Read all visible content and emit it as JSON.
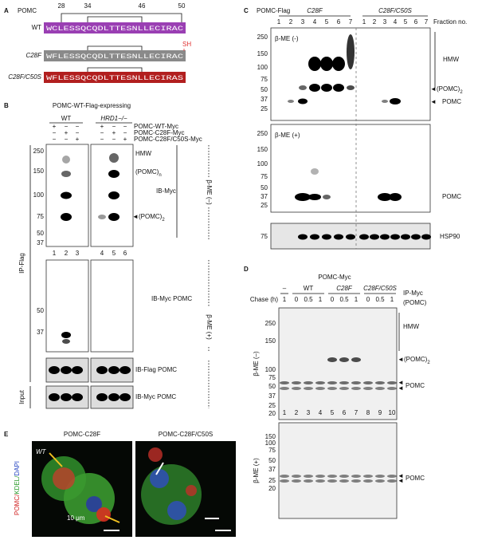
{
  "panel_a": {
    "letter": "A",
    "title": "POMC",
    "positions": [
      28,
      34,
      46,
      50
    ],
    "rows": [
      {
        "label": "WT",
        "sequence": "WCLESSQCQDLTTESNLLECIRAC"
      },
      {
        "label": "C28F",
        "sequence": "WFLESSQCQDLTTESNLLECIRAC"
      },
      {
        "label": "C28F/C50S",
        "sequence": "WFLESSQCQDLTTESNLLECIRAS"
      }
    ],
    "sh": "SH"
  },
  "panel_b": {
    "letter": "B",
    "title": "POMC-WT-Flag-expressing",
    "groups": [
      "WT",
      "HRD1−/−"
    ],
    "constructs": [
      "POMC-WT-Myc",
      "POMC-C28F-Myc",
      "POMC-C28F/C50S-Myc"
    ],
    "signs": [
      [
        "+",
        "−",
        "−",
        "+",
        "−",
        "−"
      ],
      [
        "−",
        "+",
        "−",
        "−",
        "+",
        "−"
      ],
      [
        "−",
        "−",
        "+",
        "−",
        "−",
        "+"
      ]
    ],
    "markers_top": [
      250,
      150,
      100,
      75,
      50,
      37
    ],
    "lanes": [
      1,
      2,
      3,
      4,
      5,
      6
    ],
    "markers_middle": [
      50,
      37
    ],
    "hmw": "HMW",
    "pomc": "(POMC)",
    "sub_n": "n",
    "sub_2": "2",
    "arrow": "◄",
    "ib_myc": "IB-Myc",
    "bme_minus": "β-ME (–)",
    "ib_myc_pomc": "IB-Myc POMC",
    "bme_plus": "β-ME (+)",
    "ib_flag_pomc": "IB-Flag POMC",
    "ib_myc_pomc_input": "IB-Myc POMC",
    "ip_flag": "IP-Flag",
    "input": "Input"
  },
  "panel_c": {
    "letter": "C",
    "title": "POMC-Flag",
    "groups": [
      "C28F",
      "C28F/C50S"
    ],
    "fraction_label": "Fraction no.",
    "fractions": [
      1,
      2,
      3,
      4,
      5,
      6,
      7,
      1,
      2,
      3,
      4,
      5,
      6,
      7
    ],
    "bme_minus": "β-ME (-)",
    "markers_top": [
      250,
      150,
      100,
      75,
      50,
      37,
      25
    ],
    "hmw": "HMW",
    "pomc_2": "(POMC)",
    "sub_2": "2",
    "pomc": "POMC",
    "bme_plus": "β-ME (+)",
    "markers_bottom": [
      250,
      150,
      100,
      75,
      50,
      37,
      25
    ],
    "pomc_bottom": "POMC",
    "marker_hsp": 75,
    "hsp90": "HSP90"
  },
  "panel_d": {
    "letter": "D",
    "title": "POMC-Myc",
    "groups": [
      "–",
      "WT",
      "C28F",
      "C28F/C50S"
    ],
    "chase_label": "Chase (h)",
    "chase": [
      1,
      0,
      0.5,
      1,
      0,
      0.5,
      1,
      0,
      0.5,
      1
    ],
    "ip_myc": "IP-Myc",
    "ip_pomc": "(POMC)",
    "markers_top": [
      250,
      150,
      100,
      75,
      50,
      37,
      25,
      20
    ],
    "hmw": "HMW",
    "pomc_2": "(POMC)",
    "sub_2": "2",
    "pomc": "POMC",
    "bme_minus": "β-ME (–)",
    "lanes": [
      1,
      2,
      3,
      4,
      5,
      6,
      7,
      8,
      9,
      10
    ],
    "markers_bottom": [
      150,
      100,
      75,
      50,
      37,
      25,
      20
    ],
    "bme_plus": "β-ME (+)",
    "pomc_bottom": "POMC"
  },
  "panel_e": {
    "letter": "E",
    "titles": [
      "POMC-C28F",
      "POMC-C28F/C50S"
    ],
    "wt": "WT",
    "stain": [
      "POMC/",
      "KDEL/",
      "DAPI"
    ],
    "scale": "10 μm"
  }
}
